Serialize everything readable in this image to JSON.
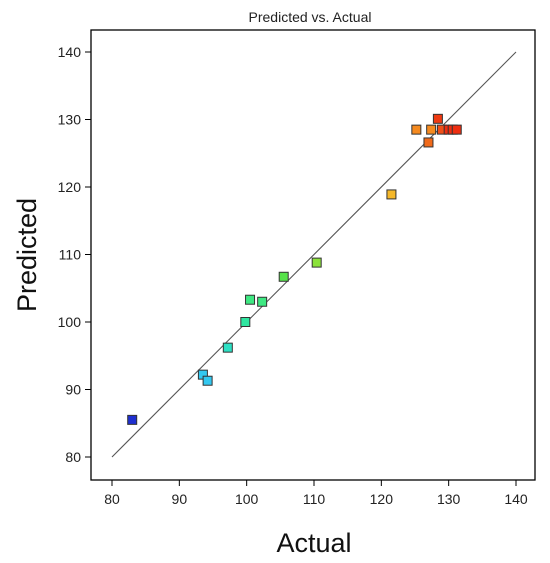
{
  "chart_data": {
    "type": "scatter",
    "title": "Predicted vs. Actual",
    "xlabel": "Actual",
    "ylabel": "Predicted",
    "xlim": [
      80,
      140
    ],
    "ylim": [
      80,
      140
    ],
    "xticks": [
      80,
      90,
      100,
      110,
      120,
      130,
      140
    ],
    "yticks": [
      80,
      90,
      100,
      110,
      120,
      130,
      140
    ],
    "xtick_labels": [
      "80",
      "90",
      "100",
      "110",
      "120",
      "130",
      "140"
    ],
    "ytick_labels": [
      "80",
      "90",
      "100",
      "110",
      "120",
      "130",
      "140"
    ],
    "grid": false,
    "reference_line": {
      "from": [
        80,
        80
      ],
      "to": [
        140,
        140
      ]
    },
    "points": [
      {
        "x": 83.0,
        "y": 85.5,
        "color": "#1f2fd0"
      },
      {
        "x": 93.5,
        "y": 92.2,
        "color": "#33c8f0"
      },
      {
        "x": 94.2,
        "y": 91.3,
        "color": "#33c8f0"
      },
      {
        "x": 97.2,
        "y": 96.2,
        "color": "#2de0c4"
      },
      {
        "x": 99.8,
        "y": 100.0,
        "color": "#2fe6a0"
      },
      {
        "x": 100.5,
        "y": 103.3,
        "color": "#3ee882"
      },
      {
        "x": 102.3,
        "y": 103.0,
        "color": "#3ee882"
      },
      {
        "x": 105.5,
        "y": 106.7,
        "color": "#56e24a"
      },
      {
        "x": 110.4,
        "y": 108.8,
        "color": "#8be23a"
      },
      {
        "x": 121.5,
        "y": 118.9,
        "color": "#f5b82a"
      },
      {
        "x": 125.2,
        "y": 128.5,
        "color": "#f58a1f"
      },
      {
        "x": 127.0,
        "y": 126.6,
        "color": "#f06a1a"
      },
      {
        "x": 127.4,
        "y": 128.5,
        "color": "#f58a1f"
      },
      {
        "x": 128.4,
        "y": 130.1,
        "color": "#ee3a12"
      },
      {
        "x": 129.0,
        "y": 128.5,
        "color": "#f0501a"
      },
      {
        "x": 130.0,
        "y": 128.5,
        "color": "#ee2e10"
      },
      {
        "x": 130.6,
        "y": 128.5,
        "color": "#ee2e10"
      },
      {
        "x": 131.2,
        "y": 128.5,
        "color": "#ee2e10"
      }
    ]
  }
}
